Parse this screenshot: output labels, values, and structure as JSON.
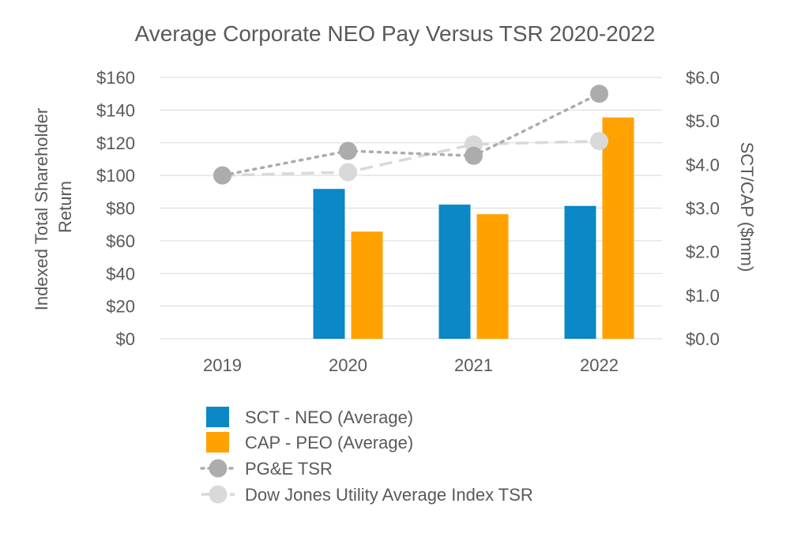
{
  "chart_data": {
    "type": "bar",
    "title": "Average Corporate NEO Pay Versus TSR 2020-2022",
    "categories": [
      "2019",
      "2020",
      "2021",
      "2022"
    ],
    "left_axis": {
      "label_lines": [
        "Indexed Total Shareholder",
        "Return"
      ],
      "ylim": [
        0,
        160
      ],
      "ticks": [
        0,
        20,
        40,
        60,
        80,
        100,
        120,
        140,
        160
      ],
      "tick_labels": [
        "$0",
        "$20",
        "$40",
        "$60",
        "$80",
        "$100",
        "$120",
        "$140",
        "$160"
      ]
    },
    "right_axis": {
      "label": "SCT/CAP ($mm)",
      "ylim": [
        0,
        6
      ],
      "ticks": [
        0,
        1,
        2,
        3,
        4,
        5,
        6
      ],
      "tick_labels": [
        "$0.0",
        "$1.0",
        "$2.0",
        "$3.0",
        "$4.0",
        "$5.0",
        "$6.0"
      ]
    },
    "grid": true,
    "legend_position": "bottom",
    "series": [
      {
        "name": "SCT - NEO (Average)",
        "kind": "bar",
        "axis": "right",
        "color": "#0b88c6",
        "values": [
          null,
          3.44,
          3.08,
          3.05
        ]
      },
      {
        "name": "CAP - PEO (Average)",
        "kind": "bar",
        "axis": "right",
        "color": "#ffa200",
        "values": [
          null,
          2.46,
          2.86,
          5.08
        ]
      },
      {
        "name": "PG&E TSR",
        "kind": "line",
        "style": "dotted",
        "axis": "left",
        "color": "#acacac",
        "values": [
          100,
          115,
          112,
          150
        ]
      },
      {
        "name": "Dow Jones Utility Average Index TSR",
        "kind": "line",
        "style": "dashed",
        "axis": "left",
        "color": "#d9d9d9",
        "values": [
          100,
          102,
          119,
          121
        ]
      }
    ]
  }
}
